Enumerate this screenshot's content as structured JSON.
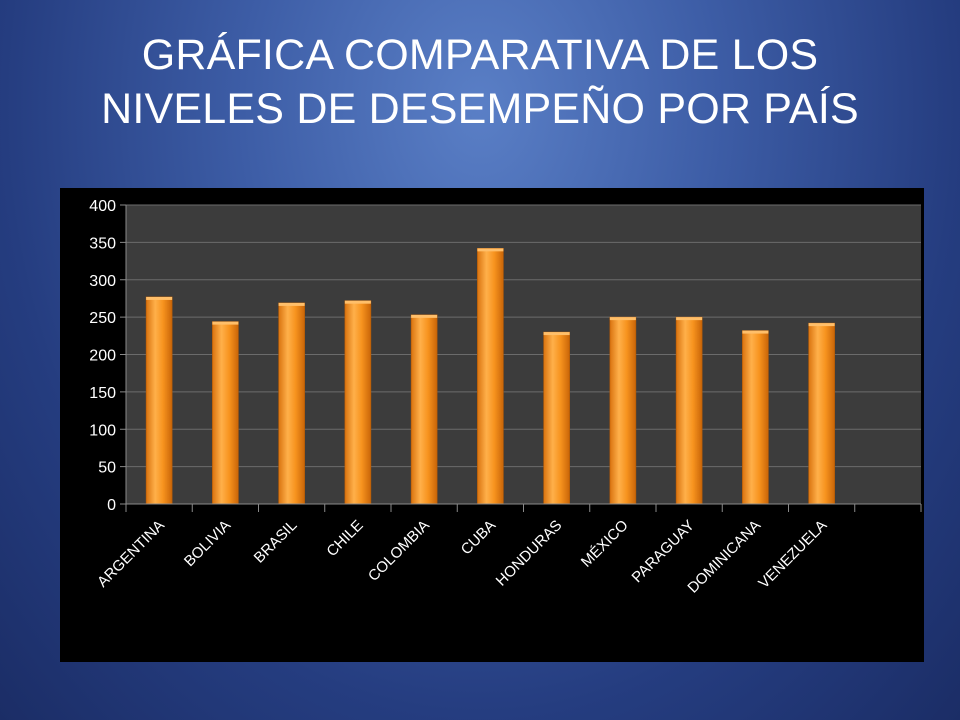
{
  "slide": {
    "title_line1": "GRÁFICA COMPARATIVA DE LOS",
    "title_line2": "NIVELES DE DESEMPEÑO POR PAÍS"
  },
  "colors": {
    "bar": "#f7931e",
    "bar_highlight": "#ffbf6a",
    "plot_background": "#3c3c3c",
    "gridline": "#6b6b6b",
    "chart_background": "#000000"
  },
  "chart_data": {
    "type": "bar",
    "title": "",
    "xlabel": "",
    "ylabel": "",
    "categories": [
      "ARGENTINA",
      "BOLIVIA",
      "BRASIL",
      "CHILE",
      "COLOMBIA",
      "CUBA",
      "HONDURAS",
      "MÉXICO",
      "PARAGUAY",
      "DOMINICANA",
      "VENEZUELA"
    ],
    "values": [
      277,
      244,
      269,
      272,
      253,
      342,
      230,
      250,
      250,
      232,
      242
    ],
    "ylim": [
      0,
      400
    ],
    "yticks": [
      0,
      50,
      100,
      150,
      200,
      250,
      300,
      350,
      400
    ],
    "grid": true,
    "legend": "none"
  }
}
